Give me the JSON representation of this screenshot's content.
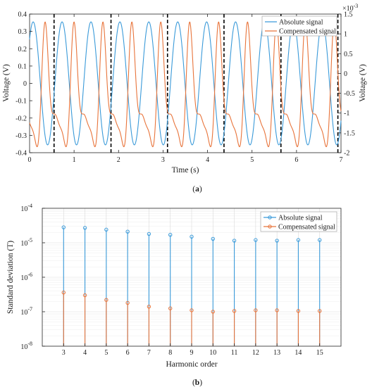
{
  "colors": {
    "absolute": "#3a9ad9",
    "compensated": "#e8743b",
    "dashed": "#000000",
    "axis": "#262626",
    "grid": "#d9d9d9"
  },
  "chart_data": [
    {
      "type": "line",
      "panel_caption": "(a)",
      "xlabel": "Time (s)",
      "ylabel_left": "Voltage (V)",
      "ylabel_right": "Voltage (V)",
      "right_axis_exponent": "×10",
      "right_axis_exponent_power": "-3",
      "xlim": [
        0,
        7
      ],
      "ylim_left": [
        -0.4,
        0.4
      ],
      "ylim_right": [
        -2,
        1.5
      ],
      "xticks": [
        "0",
        "1",
        "2",
        "3",
        "4",
        "5",
        "6",
        "7"
      ],
      "yticks_left": [
        "-0.4",
        "-0.3",
        "-0.2",
        "-0.1",
        "0",
        "0.1",
        "0.2",
        "0.3",
        "0.4"
      ],
      "yticks_right": [
        "-2",
        "-1.5",
        "-1",
        "-0.5",
        "0",
        "0.5",
        "1",
        "1.5"
      ],
      "series": [
        {
          "name": "Absolute signal",
          "axis": "left",
          "amplitude": 0.355,
          "period_s": 0.65,
          "phase_s": 0.08
        },
        {
          "name": "Compensated signal",
          "axis": "right",
          "amplitude_range": [
            -1.85,
            1.3
          ],
          "period_s": 0.65
        }
      ],
      "dashed_markers_x": [
        0.55,
        1.83,
        3.1,
        4.37,
        5.65,
        6.93
      ],
      "legend": "top-right",
      "grid": false
    },
    {
      "type": "scatter",
      "panel_caption": "(b)",
      "xlabel": "Harmonic order",
      "ylabel": "Standard deviation (T)",
      "yscale": "log",
      "xlim": [
        2,
        16
      ],
      "ylim": [
        1e-08,
        0.0001
      ],
      "categories": [
        3,
        4,
        5,
        6,
        7,
        8,
        9,
        10,
        11,
        12,
        13,
        14,
        15
      ],
      "yticks": [
        {
          "base": "10",
          "exp": "-8"
        },
        {
          "base": "10",
          "exp": "-7"
        },
        {
          "base": "10",
          "exp": "-6"
        },
        {
          "base": "10",
          "exp": "-5"
        },
        {
          "base": "10",
          "exp": "-4"
        }
      ],
      "series": [
        {
          "name": "Absolute signal",
          "values": [
            2.8e-05,
            2.7e-05,
            2.4e-05,
            2.1e-05,
            1.8e-05,
            1.7e-05,
            1.5e-05,
            1.3e-05,
            1.15e-05,
            1.2e-05,
            1.15e-05,
            1.2e-05,
            1.2e-05
          ]
        },
        {
          "name": "Compensated signal",
          "values": [
            3.6e-07,
            3e-07,
            2.2e-07,
            1.8e-07,
            1.4e-07,
            1.25e-07,
            1.1e-07,
            1e-07,
            1.05e-07,
            1.1e-07,
            1.1e-07,
            1.05e-07,
            1.05e-07
          ]
        }
      ],
      "legend": "top-right",
      "grid": true
    }
  ]
}
